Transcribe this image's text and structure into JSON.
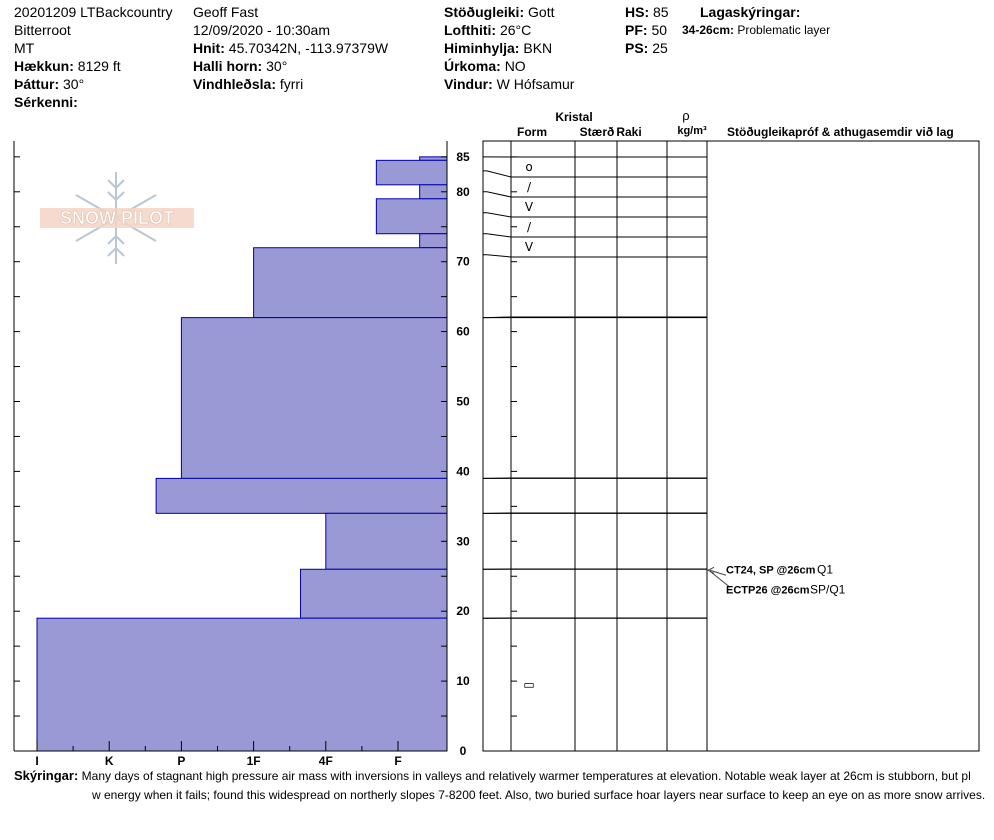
{
  "header": {
    "col1": [
      {
        "value": "20201209 LTBackcountry"
      },
      {
        "value": "Bitterroot"
      },
      {
        "value": "MT"
      },
      {
        "label": "Hækkun:",
        "value": "8129 ft"
      },
      {
        "label": "Þáttur:",
        "value": "30°"
      },
      {
        "label": "Sérkenni:",
        "value": ""
      }
    ],
    "col2": [
      {
        "value": "Geoff Fast"
      },
      {
        "value": "12/09/2020 - 10:30am"
      },
      {
        "label": "Hnit:",
        "value": "45.70342N, -113.97379W"
      },
      {
        "label": "Halli horn:",
        "value": "30°"
      },
      {
        "label": "Vindhleðsla:",
        "value": "fyrri"
      }
    ],
    "col3": [
      {
        "label": "Stöðugleiki:",
        "value": "Gott"
      },
      {
        "label": "Lofthiti:",
        "value": "26°C"
      },
      {
        "label": "Himinhylja:",
        "value": "BKN"
      },
      {
        "label": "Úrkoma:",
        "value": "NO"
      },
      {
        "label": "Vindur:",
        "value": "W Hófsamur"
      }
    ],
    "col4": [
      {
        "label": "HS:",
        "value": "85"
      },
      {
        "label": "PF:",
        "value": "50"
      },
      {
        "label": "PS:",
        "value": "25"
      }
    ],
    "legend": {
      "title": "Lagaskýringar:",
      "range": "34-26cm:",
      "note": "Problematic layer"
    }
  },
  "logo_text": "SNOW PILOT",
  "columns": {
    "crystal": "Kristal",
    "form": "Form",
    "size": "Stærð",
    "moisture": "Raki",
    "rho": "ρ",
    "density_unit": "kg/m³",
    "tests": "Stöðugleikapróf & athugasemdir við lag"
  },
  "chart_data": {
    "type": "bar",
    "hardness_axis": [
      "I",
      "K",
      "P",
      "1F",
      "4F",
      "F"
    ],
    "depth_axis": {
      "min": 0,
      "max": 85,
      "ticks": [
        0,
        10,
        20,
        30,
        40,
        50,
        60,
        70,
        80,
        85
      ]
    },
    "hardness_layers": [
      {
        "top": 85,
        "bottom": 84.5,
        "hardness": 5.3
      },
      {
        "top": 84.5,
        "bottom": 81,
        "hardness": 4.7
      },
      {
        "top": 81,
        "bottom": 79,
        "hardness": 5.3
      },
      {
        "top": 79,
        "bottom": 74,
        "hardness": 4.7
      },
      {
        "top": 74,
        "bottom": 72,
        "hardness": 5.3
      },
      {
        "top": 72,
        "bottom": 62,
        "hardness": 3.0
      },
      {
        "top": 62,
        "bottom": 39,
        "hardness": 2.0
      },
      {
        "top": 39,
        "bottom": 34,
        "hardness": 1.65
      },
      {
        "top": 34,
        "bottom": 26,
        "hardness": 4.0
      },
      {
        "top": 26,
        "bottom": 19,
        "hardness": 3.65
      },
      {
        "top": 19,
        "bottom": 0,
        "hardness": 0.0
      }
    ],
    "strat_layers": [
      {
        "top": 85,
        "bottom": 83,
        "form": "o"
      },
      {
        "top": 83,
        "bottom": 80,
        "form": "/"
      },
      {
        "top": 80,
        "bottom": 77,
        "form": "V"
      },
      {
        "top": 77,
        "bottom": 74,
        "form": "/"
      },
      {
        "top": 74,
        "bottom": 71,
        "form": "V"
      },
      {
        "top": 71,
        "bottom": 62,
        "form": ""
      },
      {
        "top": 62,
        "bottom": 39,
        "form": ""
      },
      {
        "top": 39,
        "bottom": 34,
        "form": ""
      },
      {
        "top": 34,
        "bottom": 26,
        "form": ""
      },
      {
        "top": 26,
        "bottom": 19,
        "form": ""
      },
      {
        "top": 19,
        "bottom": 0,
        "form": "▭"
      }
    ],
    "tests": [
      {
        "depth": 26,
        "code": "CT24, SP @26cm",
        "quality": "Q1"
      },
      {
        "depth": 26,
        "code": "ECTP26 @26cm",
        "quality": "SP/Q1"
      }
    ],
    "fill_color": "#9999d6",
    "line_color": "#0000aa"
  },
  "comments": {
    "label": "Skýringar:",
    "line1": "Many days of stagnant high pressure air mass with inversions in valleys and relatively warmer temperatures at elevation. Notable weak layer at 26cm is stubborn, but pl",
    "line2": "w energy when it fails; found this widespread on northerly slopes 7-8200 feet. Also, two buried surface hoar layers near surface to keep an eye on as more snow arrives."
  }
}
